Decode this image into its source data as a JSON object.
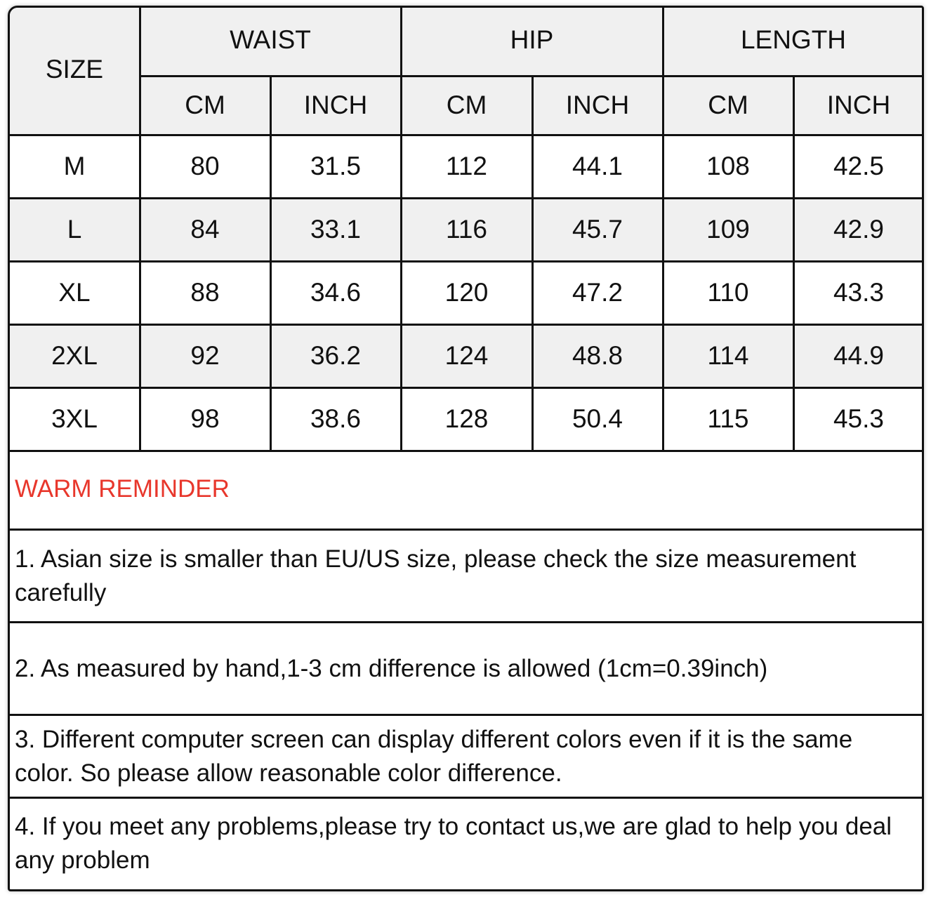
{
  "table": {
    "size_label": "SIZE",
    "groups": [
      "WAIST",
      "HIP",
      "LENGTH"
    ],
    "units": [
      "CM",
      "INCH",
      "CM",
      "INCH",
      "CM",
      "INCH"
    ],
    "rows": [
      {
        "size": "M",
        "values": [
          "80",
          "31.5",
          "112",
          "44.1",
          "108",
          "42.5"
        ]
      },
      {
        "size": "L",
        "values": [
          "84",
          "33.1",
          "116",
          "45.7",
          "109",
          "42.9"
        ]
      },
      {
        "size": "XL",
        "values": [
          "88",
          "34.6",
          "120",
          "47.2",
          "110",
          "43.3"
        ]
      },
      {
        "size": "2XL",
        "values": [
          "92",
          "36.2",
          "124",
          "48.8",
          "114",
          "44.9"
        ]
      },
      {
        "size": "3XL",
        "values": [
          "98",
          "38.6",
          "128",
          "50.4",
          "115",
          "45.3"
        ]
      }
    ]
  },
  "reminder": {
    "title": "WARM REMINDER",
    "title_color": "#e8372c",
    "notes": [
      "1. Asian size is smaller than EU/US size, please check the size measurement carefully",
      "2. As measured by hand,1-3 cm difference is allowed (1cm=0.39inch)",
      "3. Different computer screen can display different colors even if it is the same color. So please allow reasonable color difference.",
      "4. If you meet any problems,please try to contact us,we are glad to help you deal any problem"
    ]
  }
}
